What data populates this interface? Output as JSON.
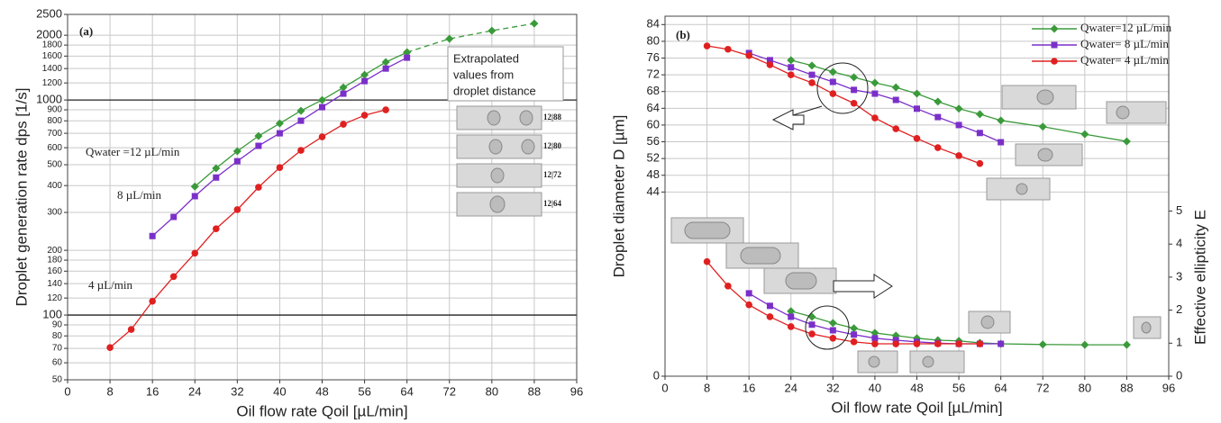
{
  "chart_data": [
    {
      "type": "line",
      "xlabel": "Oil flow rate  Qoil [µL/min]",
      "ylabel": "Droplet generation rate  dps [1/s]",
      "xlim": [
        0,
        96
      ],
      "xticks": [
        0,
        8,
        16,
        24,
        32,
        40,
        48,
        56,
        64,
        72,
        80,
        88,
        96
      ],
      "ylim": [
        50,
        2500
      ],
      "log_y": true,
      "grid": true,
      "yticks": [
        50,
        60,
        70,
        80,
        90,
        100,
        120,
        140,
        160,
        180,
        200,
        300,
        400,
        500,
        600,
        700,
        800,
        900,
        1000,
        1200,
        1400,
        1600,
        1800,
        2000,
        2500
      ],
      "annotations": [
        "(a)",
        "Qwater =12 µL/min",
        "8 µL/min",
        "4 µL/min",
        "Extrapolated",
        "values from",
        "droplet distance",
        "12|88",
        "12|80",
        "12|72",
        "12|64"
      ],
      "series": [
        {
          "color": "#3a9a3a",
          "marker": "diamond",
          "x": [
            24,
            28,
            32,
            36,
            40,
            44,
            48,
            52,
            56,
            60,
            64
          ],
          "values": [
            396,
            481,
            578,
            680,
            778,
            891,
            1000,
            1144,
            1310,
            1500,
            1666
          ]
        },
        {
          "color": "#3a9a3a",
          "marker": "diamond",
          "dashed": true,
          "x": [
            64,
            72,
            80,
            88
          ],
          "values": [
            1666,
            1926,
            2100,
            2268
          ]
        },
        {
          "color": "#7b2fc9",
          "marker": "square",
          "x": [
            16,
            20,
            24,
            28,
            32,
            36,
            40,
            44,
            48,
            52,
            56,
            60,
            64
          ],
          "values": [
            233,
            286,
            357,
            436,
            519,
            612,
            700,
            801,
            926,
            1070,
            1224,
            1400,
            1573
          ]
        },
        {
          "color": "#e02020",
          "marker": "circle",
          "x": [
            8,
            12,
            16,
            20,
            24,
            28,
            32,
            36,
            40,
            44,
            48,
            52,
            56,
            60
          ],
          "values": [
            70.6,
            85.7,
            116,
            151,
            194,
            252,
            309,
            393,
            485,
            583,
            674,
            771,
            849,
            900
          ]
        }
      ]
    },
    {
      "type": "line",
      "xlabel": "Oil flow rate  Qoil [µL/min]",
      "ylabel": "Droplet diameter  D [µm]",
      "y2label": "Effective ellipticity  E",
      "xlim": [
        0,
        96
      ],
      "xticks": [
        0,
        8,
        16,
        24,
        32,
        40,
        48,
        56,
        64,
        72,
        80,
        88,
        96
      ],
      "ylim": [
        0,
        86
      ],
      "yticks": [
        0,
        44,
        48,
        52,
        56,
        60,
        64,
        68,
        72,
        76,
        80,
        84
      ],
      "y2lim": [
        0,
        10.9
      ],
      "y2ticks": [
        0,
        1,
        2,
        3,
        4,
        5
      ],
      "grid": true,
      "legend": "upper right",
      "annotations": [
        "(b)"
      ],
      "series": [
        {
          "name": "Qwater=12 µL/min",
          "color": "#3a9a3a",
          "marker": "diamond",
          "x": [
            24,
            28,
            32,
            36,
            40,
            44,
            48,
            52,
            56,
            60,
            64,
            72,
            80,
            88
          ],
          "values": [
            75.5,
            74.2,
            72.7,
            71.4,
            70.1,
            69.0,
            67.5,
            65.6,
            63.9,
            62.6,
            61.1,
            59.6,
            57.8,
            56.1
          ]
        },
        {
          "name": "Qwater= 8 µL/min",
          "color": "#7b2fc9",
          "marker": "square",
          "x": [
            16,
            20,
            24,
            28,
            32,
            36,
            40,
            44,
            48,
            52,
            56,
            60,
            64
          ],
          "values": [
            77.2,
            75.5,
            73.8,
            72.0,
            70.3,
            68.4,
            67.5,
            66.0,
            63.9,
            61.9,
            60.0,
            58.1,
            55.9
          ]
        },
        {
          "name": "Qwater= 4 µL/min",
          "color": "#e02020",
          "marker": "circle",
          "x": [
            8,
            12,
            16,
            20,
            24,
            28,
            32,
            36,
            40,
            44,
            48,
            52,
            56,
            60
          ],
          "values": [
            78.9,
            78.1,
            76.6,
            74.4,
            72.0,
            70.1,
            67.5,
            65.2,
            61.7,
            59.1,
            56.8,
            54.6,
            52.7,
            50.8
          ]
        },
        {
          "axis": "y2",
          "color": "#3a9a3a",
          "marker": "diamond",
          "x": [
            24,
            28,
            32,
            36,
            40,
            44,
            48,
            52,
            56,
            60,
            64,
            72,
            80,
            88
          ],
          "values": [
            1.97,
            1.8,
            1.61,
            1.45,
            1.31,
            1.23,
            1.15,
            1.09,
            1.07,
            1.01,
            0.98,
            0.96,
            0.95,
            0.95
          ]
        },
        {
          "axis": "y2",
          "color": "#7b2fc9",
          "marker": "square",
          "x": [
            16,
            20,
            24,
            28,
            32,
            36,
            40,
            44,
            48,
            52,
            56,
            60,
            64
          ],
          "values": [
            2.51,
            2.13,
            1.8,
            1.56,
            1.39,
            1.26,
            1.15,
            1.09,
            1.04,
            1.0,
            0.98,
            0.98,
            0.98
          ]
        },
        {
          "axis": "y2",
          "color": "#e02020",
          "marker": "circle",
          "x": [
            8,
            12,
            16,
            20,
            24,
            28,
            32,
            36,
            40,
            44,
            48,
            52,
            56,
            60
          ],
          "values": [
            3.47,
            2.73,
            2.16,
            1.8,
            1.5,
            1.28,
            1.15,
            1.04,
            0.98,
            0.98,
            0.98,
            0.98,
            0.98,
            0.98
          ]
        }
      ]
    }
  ]
}
